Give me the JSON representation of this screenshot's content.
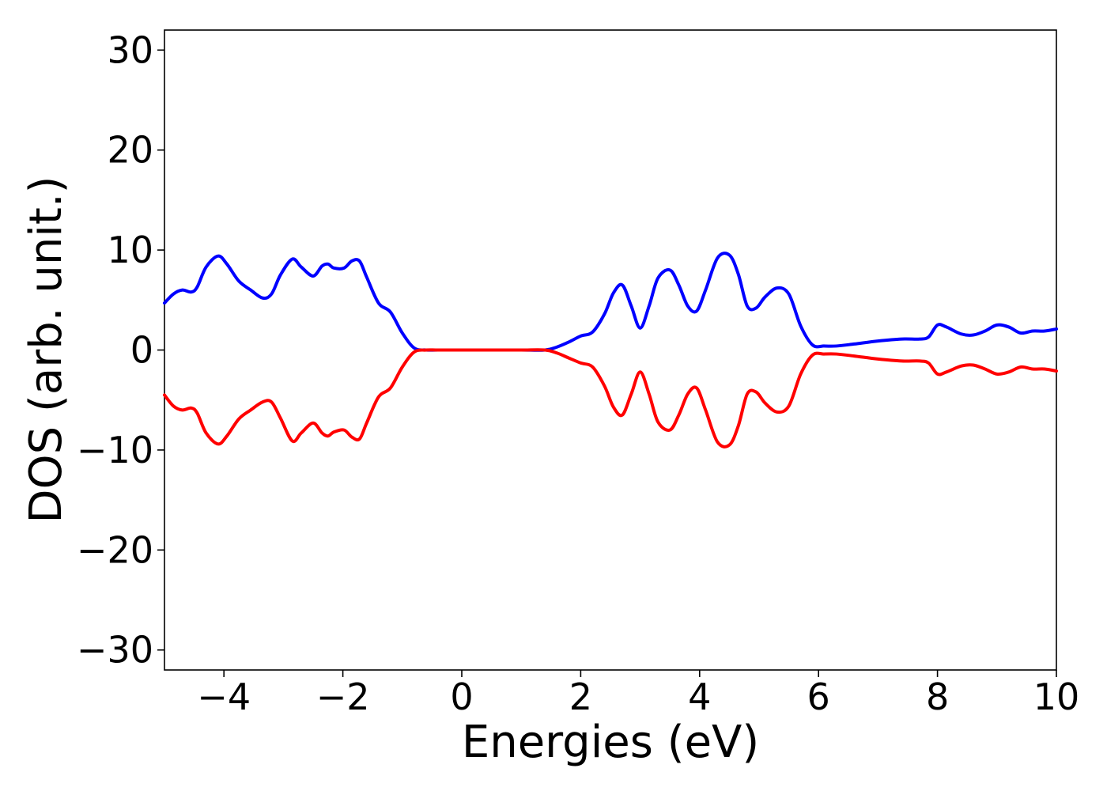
{
  "chart_data": {
    "type": "line",
    "title": "",
    "xlabel": "Energies (eV)",
    "ylabel": "DOS (arb. unit.)",
    "xlim": [
      -5,
      10
    ],
    "ylim": [
      -32,
      32
    ],
    "grid": false,
    "xticks": [
      -4,
      -2,
      0,
      2,
      4,
      6,
      8,
      10
    ],
    "yticks": [
      -30,
      -20,
      -10,
      0,
      10,
      20,
      30
    ],
    "xtick_labels": [
      "−4",
      "−2",
      "0",
      "2",
      "4",
      "6",
      "8",
      "10"
    ],
    "ytick_labels": [
      "−30",
      "−20",
      "−10",
      "0",
      "10",
      "20",
      "30"
    ],
    "series": [
      {
        "color": "#0000ff",
        "x": [
          -5.0,
          -4.85,
          -4.7,
          -4.55,
          -4.45,
          -4.3,
          -4.1,
          -3.95,
          -3.75,
          -3.55,
          -3.35,
          -3.2,
          -3.05,
          -2.85,
          -2.7,
          -2.5,
          -2.35,
          -2.25,
          -2.15,
          -1.98,
          -1.85,
          -1.72,
          -1.6,
          -1.4,
          -1.2,
          -1.0,
          -0.8,
          -0.6,
          -0.4,
          0.0,
          0.5,
          1.0,
          1.4,
          1.6,
          1.8,
          2.0,
          2.2,
          2.4,
          2.55,
          2.7,
          2.85,
          3.0,
          3.15,
          3.3,
          3.5,
          3.65,
          3.8,
          3.95,
          4.1,
          4.3,
          4.5,
          4.65,
          4.8,
          4.95,
          5.1,
          5.3,
          5.5,
          5.7,
          5.9,
          6.1,
          6.3,
          6.6,
          7.0,
          7.4,
          7.7,
          7.85,
          8.0,
          8.15,
          8.4,
          8.6,
          8.8,
          9.0,
          9.2,
          9.4,
          9.6,
          9.8,
          10.0
        ],
        "y": [
          4.7,
          5.6,
          6.0,
          5.8,
          6.3,
          8.3,
          9.4,
          8.6,
          6.9,
          6.0,
          5.2,
          5.6,
          7.5,
          9.1,
          8.3,
          7.4,
          8.4,
          8.6,
          8.2,
          8.2,
          8.9,
          8.9,
          7.3,
          4.7,
          3.8,
          1.7,
          0.2,
          0.0,
          0.0,
          0.0,
          0.0,
          0.0,
          0.0,
          0.3,
          0.8,
          1.4,
          1.8,
          3.6,
          5.7,
          6.5,
          4.4,
          2.2,
          4.4,
          7.2,
          8.0,
          6.5,
          4.4,
          3.9,
          6.0,
          9.2,
          9.5,
          7.6,
          4.4,
          4.2,
          5.3,
          6.2,
          5.6,
          2.4,
          0.5,
          0.4,
          0.4,
          0.6,
          0.9,
          1.1,
          1.1,
          1.3,
          2.5,
          2.3,
          1.6,
          1.5,
          1.9,
          2.5,
          2.3,
          1.7,
          1.9,
          1.9,
          2.1
        ]
      },
      {
        "color": "#ff0000",
        "x": [
          -5.0,
          -4.85,
          -4.7,
          -4.55,
          -4.45,
          -4.3,
          -4.1,
          -3.95,
          -3.75,
          -3.55,
          -3.35,
          -3.2,
          -3.05,
          -2.85,
          -2.7,
          -2.5,
          -2.35,
          -2.25,
          -2.15,
          -1.98,
          -1.85,
          -1.72,
          -1.6,
          -1.4,
          -1.2,
          -1.0,
          -0.8,
          -0.6,
          -0.4,
          0.0,
          0.5,
          1.0,
          1.4,
          1.6,
          1.8,
          2.0,
          2.2,
          2.4,
          2.55,
          2.7,
          2.85,
          3.0,
          3.15,
          3.3,
          3.5,
          3.65,
          3.8,
          3.95,
          4.1,
          4.3,
          4.5,
          4.65,
          4.8,
          4.95,
          5.1,
          5.3,
          5.5,
          5.7,
          5.9,
          6.1,
          6.3,
          6.6,
          7.0,
          7.4,
          7.7,
          7.85,
          8.0,
          8.15,
          8.4,
          8.6,
          8.8,
          9.0,
          9.2,
          9.4,
          9.6,
          9.8,
          10.0
        ],
        "y": [
          -4.5,
          -5.6,
          -6.0,
          -5.8,
          -6.3,
          -8.3,
          -9.4,
          -8.6,
          -6.9,
          -6.0,
          -5.2,
          -5.2,
          -6.8,
          -9.1,
          -8.3,
          -7.3,
          -8.3,
          -8.6,
          -8.2,
          -8.0,
          -8.7,
          -8.9,
          -7.3,
          -4.7,
          -3.8,
          -1.7,
          -0.2,
          0.0,
          0.0,
          0.0,
          0.0,
          0.0,
          0.0,
          -0.3,
          -0.8,
          -1.3,
          -1.7,
          -3.6,
          -5.7,
          -6.5,
          -4.4,
          -2.2,
          -4.4,
          -7.2,
          -8.0,
          -6.5,
          -4.4,
          -3.8,
          -6.0,
          -9.2,
          -9.5,
          -7.6,
          -4.4,
          -4.2,
          -5.3,
          -6.2,
          -5.6,
          -2.4,
          -0.5,
          -0.4,
          -0.4,
          -0.6,
          -0.9,
          -1.1,
          -1.1,
          -1.3,
          -2.4,
          -2.2,
          -1.6,
          -1.5,
          -1.9,
          -2.4,
          -2.2,
          -1.7,
          -1.9,
          -1.9,
          -2.1
        ]
      }
    ]
  }
}
